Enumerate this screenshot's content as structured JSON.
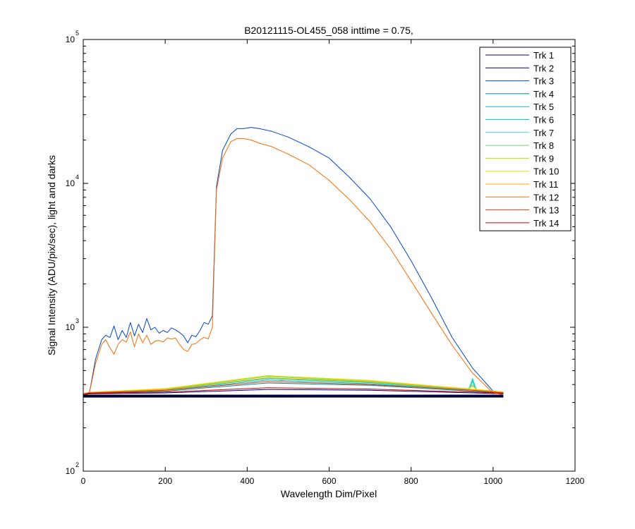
{
  "chart_data": {
    "type": "line",
    "title": "B20121115-OL455_058 inttime = 0.75,",
    "xlabel": "Wavelength Dim/Pixel",
    "ylabel": "Signal Intensity (ADU/pix/sec), light and darks",
    "xlim": [
      0,
      1200
    ],
    "ylim": [
      100,
      100000
    ],
    "yscale": "log",
    "grid": false,
    "legend_position": "top-right",
    "x_ticks": [
      "0",
      "200",
      "400",
      "600",
      "800",
      "1000",
      "1200"
    ],
    "y_ticks": [
      {
        "base": "10",
        "exp": "2",
        "value": 100
      },
      {
        "base": "10",
        "exp": "3",
        "value": 1000
      },
      {
        "base": "10",
        "exp": "4",
        "value": 10000
      },
      {
        "base": "10",
        "exp": "5",
        "value": 100000
      }
    ],
    "series": [
      {
        "name": "Trk 1",
        "color": "#0000aa",
        "x": [
          0,
          1025
        ],
        "y": [
          330,
          335
        ]
      },
      {
        "name": "Trk 2",
        "color": "#000080",
        "x": [
          0,
          15,
          200,
          450,
          700,
          950,
          1025
        ],
        "y": [
          340,
          345,
          350,
          370,
          365,
          350,
          345
        ]
      },
      {
        "name": "Trk 3",
        "color": "#0044cc",
        "x": [
          0,
          15,
          30,
          45,
          55,
          65,
          75,
          85,
          95,
          105,
          115,
          125,
          135,
          145,
          155,
          165,
          175,
          185,
          195,
          205,
          215,
          225,
          235,
          245,
          255,
          265,
          275,
          285,
          295,
          305,
          315,
          325,
          340,
          360,
          375,
          390,
          410,
          430,
          460,
          500,
          550,
          600,
          650,
          700,
          750,
          800,
          850,
          900,
          950,
          1000,
          1025
        ],
        "y": [
          345,
          350,
          600,
          820,
          880,
          850,
          1020,
          820,
          950,
          850,
          1080,
          870,
          1050,
          920,
          1150,
          960,
          1000,
          910,
          950,
          920,
          990,
          960,
          920,
          870,
          780,
          880,
          860,
          950,
          1080,
          1050,
          1200,
          9500,
          17000,
          22000,
          24000,
          24000,
          24500,
          24000,
          23000,
          21000,
          18000,
          15000,
          11000,
          7800,
          5000,
          2900,
          1600,
          850,
          520,
          360,
          340
        ]
      },
      {
        "name": "Trk 4",
        "color": "#008b9a",
        "x": [
          0,
          15,
          200,
          450,
          700,
          950,
          1025
        ],
        "y": [
          345,
          350,
          360,
          410,
          395,
          360,
          350
        ]
      },
      {
        "name": "Trk 5",
        "color": "#00bcd4",
        "x": [
          0,
          15,
          200,
          450,
          700,
          940,
          950,
          960,
          1025
        ],
        "y": [
          345,
          352,
          365,
          430,
          405,
          365,
          420,
          362,
          355
        ]
      },
      {
        "name": "Trk 6",
        "color": "#00d9b5",
        "x": [
          0,
          15,
          200,
          450,
          700,
          940,
          950,
          960,
          1025
        ],
        "y": [
          345,
          352,
          368,
          440,
          412,
          368,
          440,
          364,
          355
        ]
      },
      {
        "name": "Trk 7",
        "color": "#33e0d0",
        "x": [
          0,
          15,
          200,
          450,
          700,
          940,
          950,
          960,
          1025
        ],
        "y": [
          345,
          352,
          370,
          445,
          415,
          370,
          430,
          366,
          355
        ]
      },
      {
        "name": "Trk 8",
        "color": "#66dd66",
        "x": [
          0,
          15,
          200,
          450,
          700,
          940,
          950,
          960,
          1025
        ],
        "y": [
          345,
          353,
          372,
          455,
          420,
          372,
          400,
          368,
          355
        ]
      },
      {
        "name": "Trk 9",
        "color": "#bbdd00",
        "x": [
          0,
          15,
          200,
          450,
          700,
          940,
          950,
          960,
          1025
        ],
        "y": [
          345,
          353,
          374,
          460,
          425,
          374,
          390,
          370,
          355
        ]
      },
      {
        "name": "Trk 10",
        "color": "#e6e600",
        "x": [
          0,
          15,
          200,
          450,
          700,
          1025
        ],
        "y": [
          345,
          353,
          375,
          462,
          428,
          355
        ]
      },
      {
        "name": "Trk 11",
        "color": "#ffaa00",
        "x": [
          0,
          15,
          200,
          450,
          700,
          1025
        ],
        "y": [
          345,
          353,
          370,
          445,
          418,
          355
        ]
      },
      {
        "name": "Trk 12",
        "color": "#ff6a00",
        "x": [
          0,
          15,
          30,
          45,
          55,
          65,
          75,
          85,
          95,
          105,
          115,
          125,
          135,
          145,
          155,
          165,
          175,
          185,
          195,
          205,
          215,
          225,
          235,
          245,
          255,
          265,
          275,
          285,
          295,
          305,
          315,
          325,
          340,
          360,
          375,
          390,
          410,
          430,
          460,
          500,
          550,
          600,
          650,
          700,
          750,
          800,
          850,
          900,
          950,
          1000,
          1025
        ],
        "y": [
          345,
          350,
          560,
          760,
          820,
          720,
          650,
          760,
          820,
          790,
          930,
          730,
          900,
          780,
          880,
          760,
          800,
          810,
          790,
          840,
          830,
          840,
          760,
          700,
          680,
          760,
          770,
          820,
          850,
          830,
          1000,
          9000,
          15000,
          19500,
          20500,
          20500,
          20000,
          19000,
          18000,
          16000,
          13500,
          10500,
          7700,
          5400,
          3500,
          2100,
          1250,
          750,
          480,
          350,
          340
        ]
      },
      {
        "name": "Trk 13",
        "color": "#ff3300",
        "x": [
          0,
          15,
          200,
          450,
          700,
          950,
          1025
        ],
        "y": [
          345,
          350,
          365,
          420,
          400,
          365,
          350
        ]
      },
      {
        "name": "Trk 14",
        "color": "#cc0000",
        "x": [
          0,
          15,
          200,
          450,
          700,
          950,
          1025
        ],
        "y": [
          340,
          348,
          355,
          380,
          372,
          355,
          348
        ]
      }
    ],
    "dark_band": {
      "color": "#000000",
      "x": [
        0,
        1025
      ],
      "y": [
        325,
        340
      ]
    }
  }
}
